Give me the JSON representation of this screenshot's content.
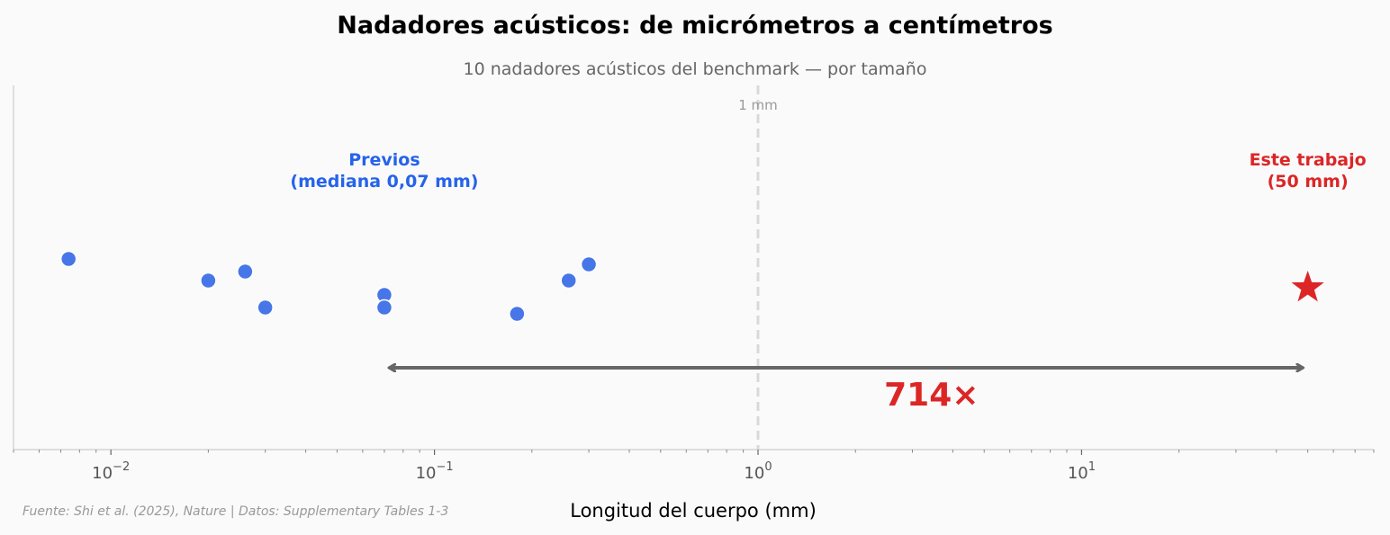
{
  "chart_data": {
    "type": "scatter",
    "title": "Nadadores acústicos: de micrómetros a centímetros",
    "subtitle": "10 nadadores acústicos del benchmark — por tamaño",
    "xlabel": "Longitud del cuerpo (mm)",
    "xscale": "log",
    "xlim": [
      0.005,
      80
    ],
    "ticks": [
      {
        "value": 0.01,
        "base": "10",
        "exp": "−2"
      },
      {
        "value": 0.1,
        "base": "10",
        "exp": "−1"
      },
      {
        "value": 1,
        "base": "10",
        "exp": "0"
      },
      {
        "value": 10,
        "base": "10",
        "exp": "1"
      }
    ],
    "grid": false,
    "series": [
      {
        "color": "#4676e8",
        "marker": "circle",
        "points": [
          {
            "x": 0.0074,
            "jitter": 0.16
          },
          {
            "x": 0.02,
            "jitter": 0.04
          },
          {
            "x": 0.026,
            "jitter": 0.09
          },
          {
            "x": 0.03,
            "jitter": -0.11
          },
          {
            "x": 0.07,
            "jitter": -0.04
          },
          {
            "x": 0.07,
            "jitter": -0.11
          },
          {
            "x": 0.18,
            "jitter": -0.145
          },
          {
            "x": 0.26,
            "jitter": 0.04
          },
          {
            "x": 0.3,
            "jitter": 0.13
          }
        ]
      },
      {
        "color": "#dc2626",
        "marker": "star",
        "points": [
          {
            "x": 50,
            "jitter": 0.0
          }
        ]
      }
    ],
    "annotations": {
      "reference_line": {
        "x": 1,
        "label": "1 mm"
      },
      "previous_label": {
        "lines": [
          "Previos",
          "(mediana 0,07 mm)"
        ],
        "x": 0.07
      },
      "this_work_label": {
        "lines": [
          "Este trabajo",
          "(50 mm)"
        ],
        "x": 50
      },
      "arrow": {
        "from": 0.07,
        "to": 50
      },
      "ratio_label": "714×"
    },
    "source": "Fuente: Shi et al. (2025), Nature | Datos: Supplementary Tables 1-3"
  }
}
